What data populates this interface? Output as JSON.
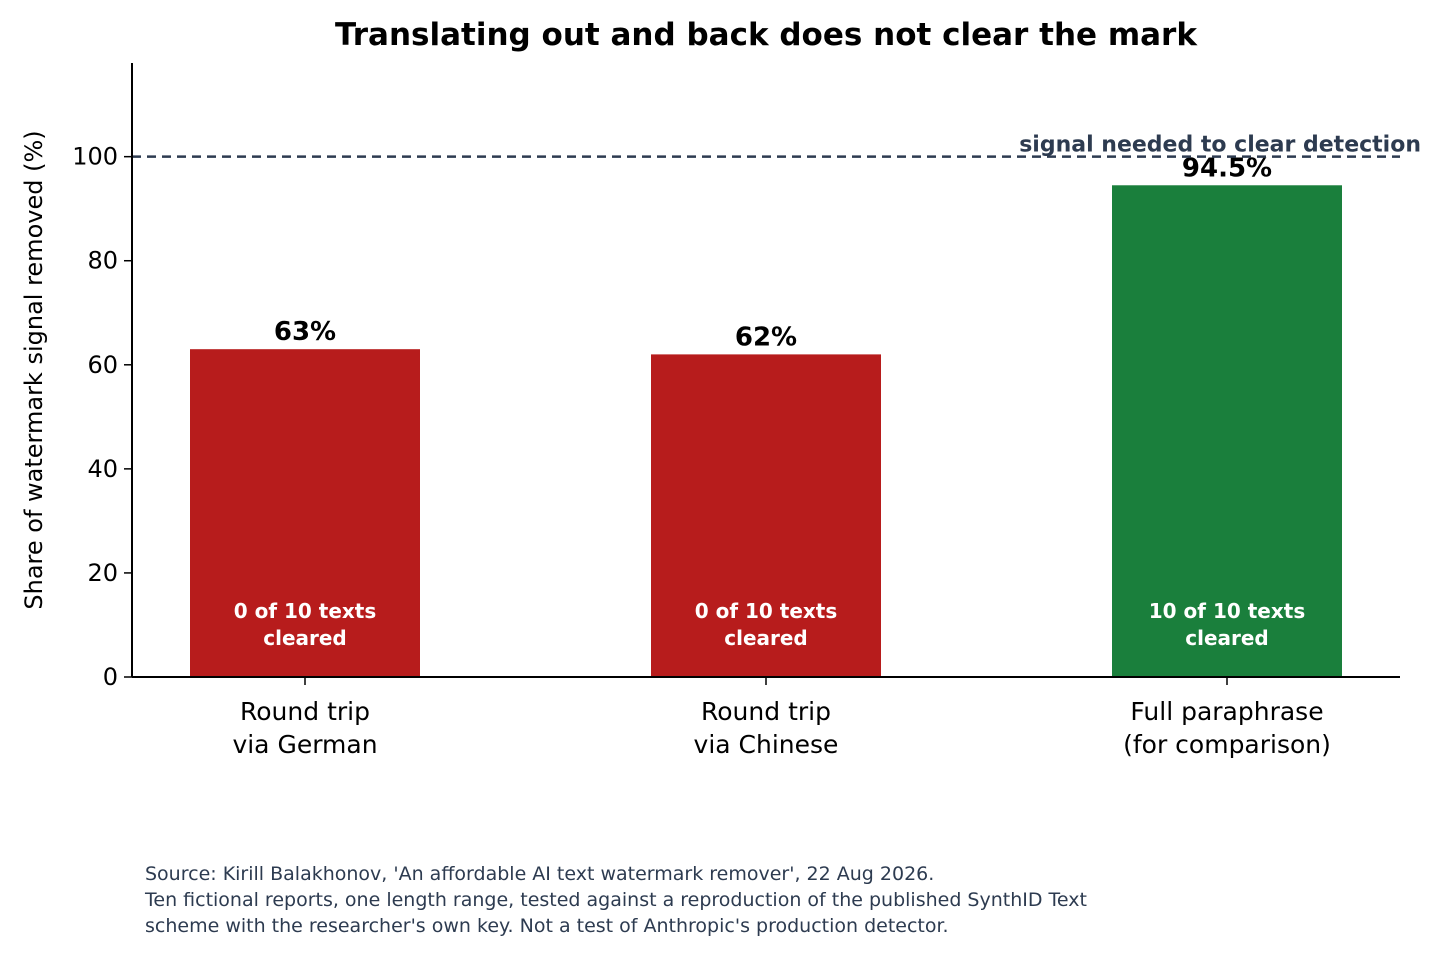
{
  "chart_data": {
    "type": "bar",
    "title": "Translating out and back does not clear the mark",
    "ylabel": "Share of watermark signal removed (%)",
    "xlabel": "",
    "ylim": [
      0,
      118
    ],
    "yticks": [
      0,
      20,
      40,
      60,
      80,
      100
    ],
    "grid": false,
    "categories": [
      [
        "Round trip",
        "via German"
      ],
      [
        "Round trip",
        "via Chinese"
      ],
      [
        "Full paraphrase",
        "(for comparison)"
      ]
    ],
    "values": [
      63,
      62,
      94.5
    ],
    "value_labels": [
      "63%",
      "62%",
      "94.5%"
    ],
    "bar_colors": [
      "#b71c1c",
      "#b71c1c",
      "#1a7f3c"
    ],
    "bar_annotations": [
      [
        "0 of 10 texts",
        "cleared"
      ],
      [
        "0 of 10 texts",
        "cleared"
      ],
      [
        "10 of 10 texts",
        "cleared"
      ]
    ],
    "reference_line": {
      "value": 100,
      "label": "signal needed to clear detection",
      "color": "#2d3b50",
      "style": "dashed"
    }
  },
  "source_note": [
    "Source: Kirill Balakhonov, 'An affordable AI text watermark remover', 22 Aug 2026.",
    "Ten fictional reports, one length range, tested against a reproduction of the published SynthID Text",
    "scheme with the researcher's own key. Not a test of Anthropic's production detector."
  ]
}
